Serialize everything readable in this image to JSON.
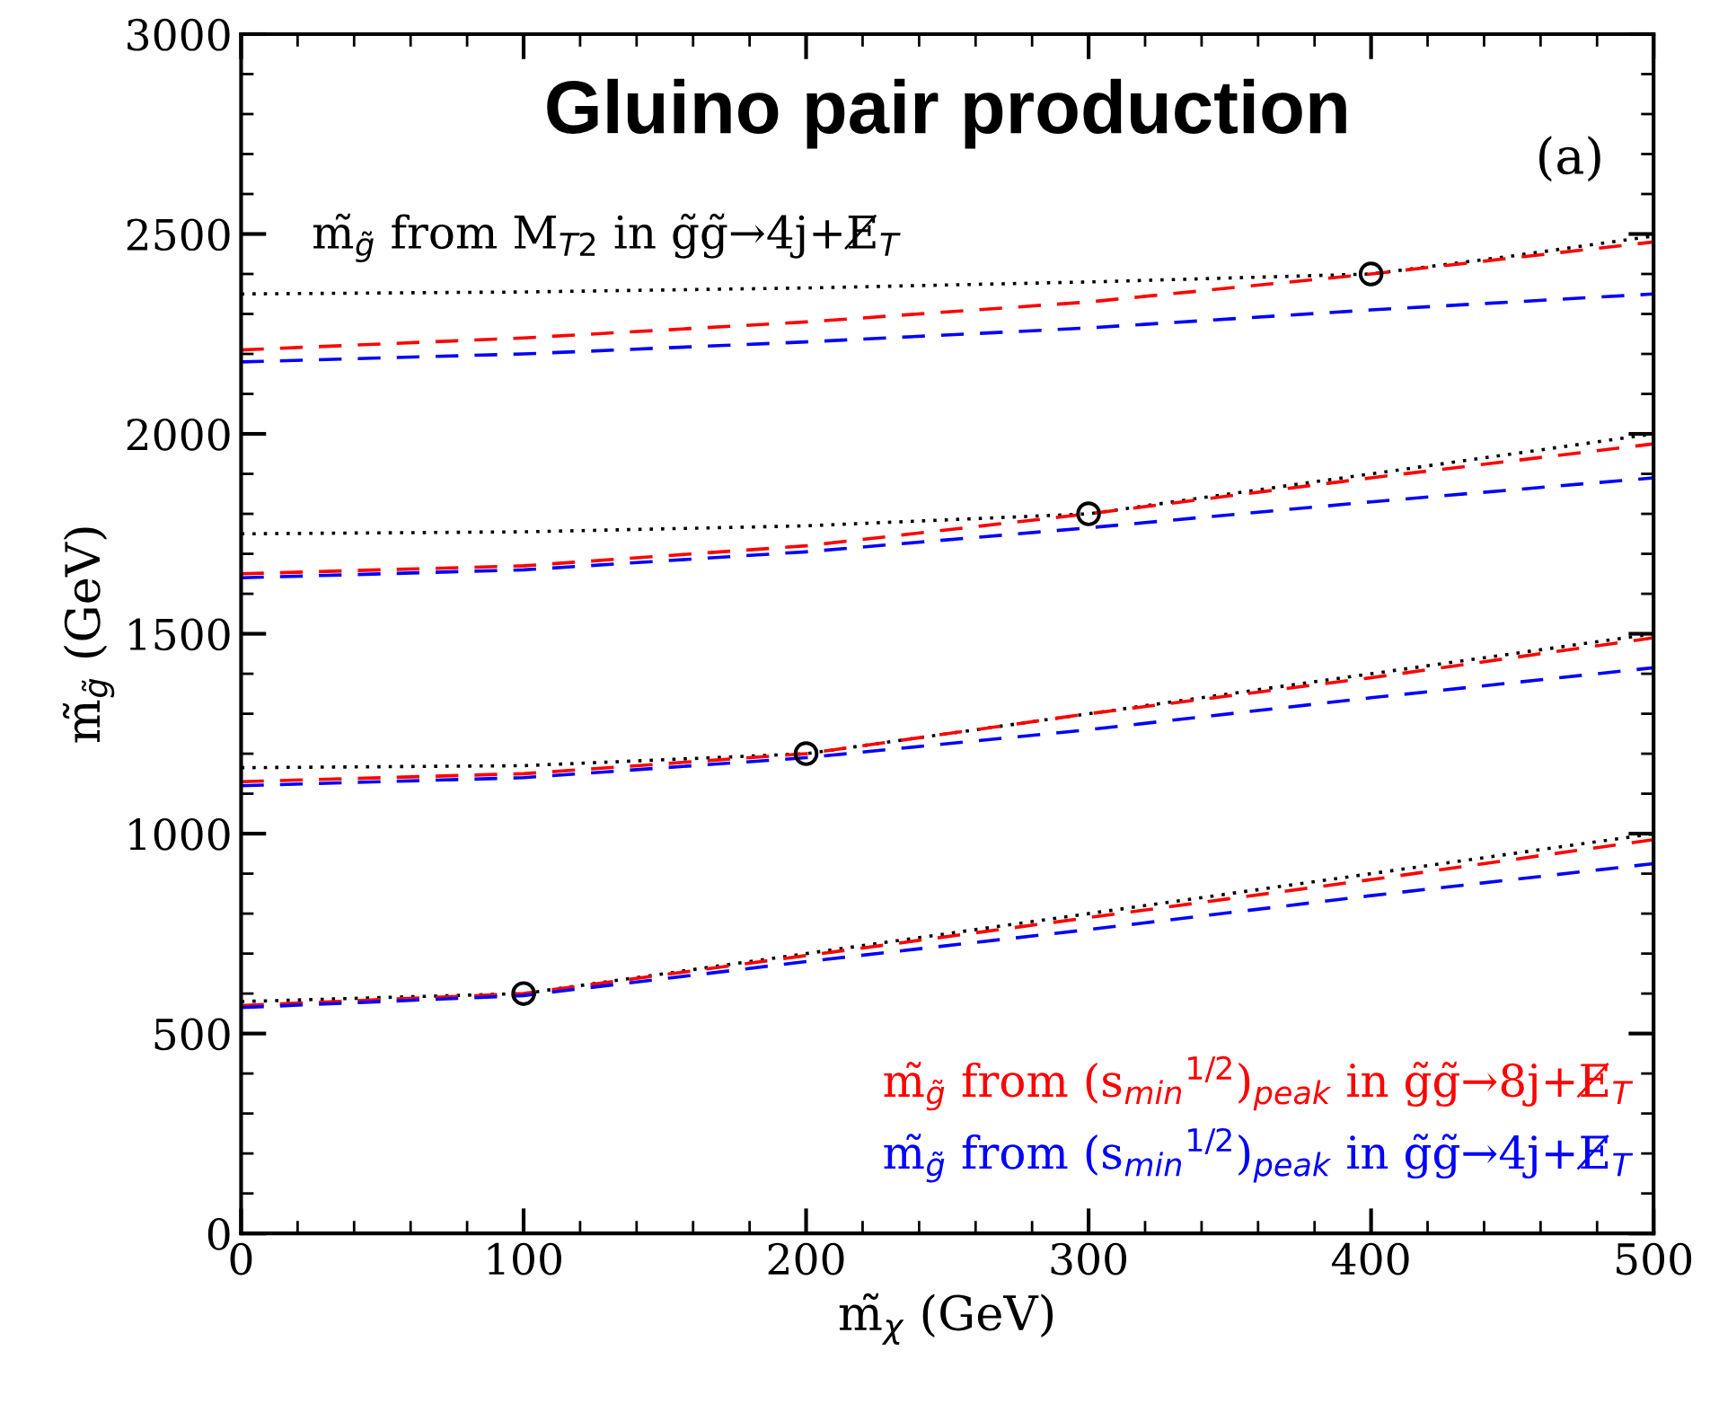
{
  "chart_data": {
    "type": "line",
    "title": "Gluino pair production",
    "xlabel": "m̃$_{χ}$ (GeV)",
    "ylabel": "m̃$_{g̃}$ (GeV)",
    "annotations": [
      "(a)"
    ],
    "xlim": [
      0,
      500
    ],
    "ylim": [
      0,
      3000
    ],
    "xticks": [
      0,
      100,
      200,
      300,
      400,
      500
    ],
    "yticks": [
      0,
      500,
      1000,
      1500,
      2000,
      2500,
      3000
    ],
    "grid": false,
    "marker": "none",
    "series": [
      {
        "name": "m̃$_{g̃}$ from M$_{T2}$ in g̃g̃→4j+E̸$_{T}$",
        "color": "#000000",
        "line_style": "dotted",
        "x": [
          0,
          100,
          200,
          300,
          400,
          450,
          500
        ],
        "values": [
          2350,
          2355,
          2365,
          2380,
          2400,
          2445,
          2495
        ]
      },
      {
        "color": "#000000",
        "line_style": "dotted",
        "x": [
          0,
          100,
          200,
          300,
          400,
          500
        ],
        "values": [
          1750,
          1755,
          1770,
          1800,
          1900,
          2000
        ]
      },
      {
        "color": "#000000",
        "line_style": "dotted",
        "x": [
          0,
          100,
          200,
          300,
          400,
          500
        ],
        "values": [
          1165,
          1170,
          1200,
          1300,
          1400,
          1500
        ]
      },
      {
        "color": "#000000",
        "line_style": "dotted",
        "x": [
          0,
          100,
          200,
          300,
          400,
          500
        ],
        "values": [
          580,
          600,
          700,
          800,
          900,
          1000
        ]
      },
      {
        "name": "m̃$_{g̃}$ from (s$_{min}$$^{1/2}$)$_{peak}$ in g̃g̃→8j+E̸$_{T}$",
        "color": "#ff0000",
        "line_style": "dashed",
        "x": [
          0,
          100,
          200,
          300,
          400,
          500
        ],
        "values": [
          2210,
          2240,
          2280,
          2330,
          2400,
          2480
        ]
      },
      {
        "color": "#ff0000",
        "line_style": "dashed",
        "x": [
          0,
          100,
          200,
          300,
          400,
          500
        ],
        "values": [
          1650,
          1670,
          1720,
          1800,
          1890,
          1975
        ]
      },
      {
        "color": "#ff0000",
        "line_style": "dashed",
        "x": [
          0,
          100,
          200,
          300,
          400,
          500
        ],
        "values": [
          1130,
          1150,
          1200,
          1300,
          1390,
          1490
        ]
      },
      {
        "color": "#ff0000",
        "line_style": "dashed",
        "x": [
          0,
          100,
          200,
          300,
          400,
          500
        ],
        "values": [
          570,
          600,
          695,
          790,
          885,
          985
        ]
      },
      {
        "name": "m̃$_{g̃}$ from (s$_{min}$$^{1/2}$)$_{peak}$ in g̃g̃→4j+E̸$_{T}$",
        "color": "#0000ff",
        "line_style": "dashed",
        "x": [
          0,
          100,
          200,
          300,
          400,
          500
        ],
        "values": [
          2180,
          2200,
          2230,
          2265,
          2310,
          2350
        ]
      },
      {
        "color": "#0000ff",
        "line_style": "dashed",
        "x": [
          0,
          100,
          200,
          300,
          400,
          500
        ],
        "values": [
          1640,
          1660,
          1705,
          1765,
          1830,
          1890
        ]
      },
      {
        "color": "#0000ff",
        "line_style": "dashed",
        "x": [
          0,
          100,
          200,
          300,
          400,
          500
        ],
        "values": [
          1120,
          1140,
          1190,
          1260,
          1340,
          1415
        ]
      },
      {
        "color": "#0000ff",
        "line_style": "dashed",
        "x": [
          0,
          100,
          200,
          300,
          400,
          500
        ],
        "values": [
          565,
          595,
          680,
          760,
          845,
          925
        ]
      },
      {
        "type": "scatter",
        "color": "#000000",
        "marker": "circle",
        "x": [
          100,
          200,
          300,
          400
        ],
        "values": [
          600,
          1200,
          1800,
          2400
        ]
      }
    ]
  }
}
